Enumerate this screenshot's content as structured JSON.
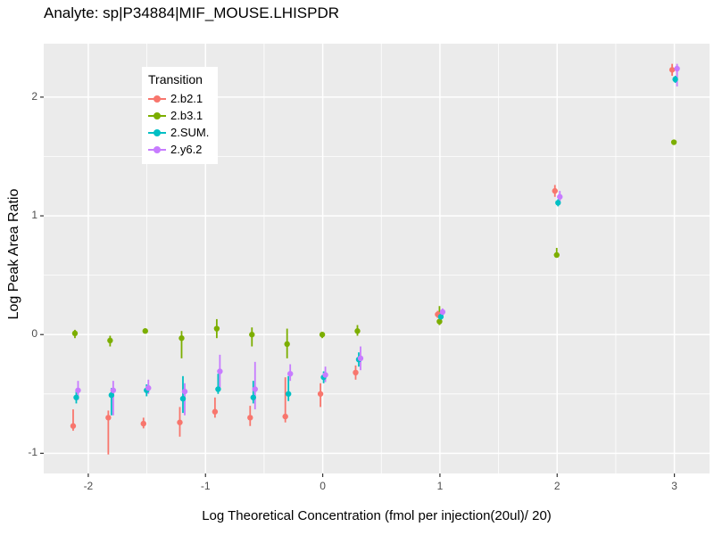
{
  "colors": {
    "background": "#FFFFFF",
    "panel_bg": "#EBEBEB",
    "grid": "#FFFFFF",
    "tick_mark": "#333333",
    "tick_text": "#4D4D4D",
    "text": "#000000"
  },
  "chart_data": {
    "type": "scatter",
    "title": "Analyte: sp|P34884|MIF_MOUSE.LHISPDR",
    "xlabel": "Log Theoretical Concentration (fmol per injection(20ul)/ 20)",
    "ylabel": "Log Peak Area Ratio",
    "legend_title": "Transition",
    "legend_position": "inside-top-left",
    "grid": "on",
    "point_style": "pointrange (dot with vertical error bar, no caps)",
    "xlim": [
      -2.38,
      3.3
    ],
    "ylim": [
      -1.17,
      2.45
    ],
    "x_major_ticks": [
      -2,
      -1,
      0,
      1,
      2,
      3
    ],
    "x_tick_labels": [
      "-2",
      "-1",
      "0",
      "1",
      "2",
      "3"
    ],
    "x_minor_ticks": [
      -1.5,
      -0.5,
      0.5,
      1.5,
      2.5
    ],
    "y_major_ticks": [
      -1,
      0,
      1,
      2
    ],
    "y_tick_labels": [
      "-1",
      "0",
      "1",
      "2"
    ],
    "y_minor_ticks": [
      -0.5,
      0.5,
      1.5
    ],
    "x": [
      -2.11,
      -1.81,
      -1.51,
      -1.2,
      -0.9,
      -0.6,
      -0.3,
      0,
      0.3,
      1,
      2,
      3
    ],
    "series": [
      {
        "name": "2.b2.1",
        "color": "#F8766D",
        "points": [
          {
            "y": -0.77,
            "lo": -0.81,
            "hi": -0.63
          },
          {
            "y": -0.7,
            "lo": -1.01,
            "hi": -0.64
          },
          {
            "y": -0.75,
            "lo": -0.79,
            "hi": -0.7
          },
          {
            "y": -0.74,
            "lo": -0.86,
            "hi": -0.61
          },
          {
            "y": -0.65,
            "lo": -0.7,
            "hi": -0.53
          },
          {
            "y": -0.7,
            "lo": -0.77,
            "hi": -0.6
          },
          {
            "y": -0.69,
            "lo": -0.74,
            "hi": -0.36
          },
          {
            "y": -0.5,
            "lo": -0.61,
            "hi": -0.41
          },
          {
            "y": -0.32,
            "lo": -0.38,
            "hi": -0.26
          },
          {
            "y": 0.17,
            "lo": 0.14,
            "hi": 0.2
          },
          {
            "y": 1.21,
            "lo": 1.16,
            "hi": 1.26
          },
          {
            "y": 2.23,
            "lo": 2.18,
            "hi": 2.28
          }
        ]
      },
      {
        "name": "2.b3.1",
        "color": "#7CAE00",
        "points": [
          {
            "y": 0.01,
            "lo": -0.03,
            "hi": 0.04
          },
          {
            "y": -0.05,
            "lo": -0.1,
            "hi": -0.01
          },
          {
            "y": 0.03,
            "lo": 0.01,
            "hi": 0.05
          },
          {
            "y": -0.03,
            "lo": -0.2,
            "hi": 0.03
          },
          {
            "y": 0.05,
            "lo": -0.03,
            "hi": 0.13
          },
          {
            "y": 0.0,
            "lo": -0.1,
            "hi": 0.06
          },
          {
            "y": -0.08,
            "lo": -0.2,
            "hi": 0.05
          },
          {
            "y": 0.0,
            "lo": -0.03,
            "hi": 0.02
          },
          {
            "y": 0.03,
            "lo": -0.01,
            "hi": 0.08
          },
          {
            "y": 0.11,
            "lo": 0.08,
            "hi": 0.24
          },
          {
            "y": 0.67,
            "lo": 0.65,
            "hi": 0.73
          },
          {
            "y": 1.62,
            "lo": 1.61,
            "hi": 1.64
          }
        ]
      },
      {
        "name": "2.SUM.",
        "color": "#00BFC4",
        "points": [
          {
            "y": -0.53,
            "lo": -0.58,
            "hi": -0.47
          },
          {
            "y": -0.51,
            "lo": -0.68,
            "hi": -0.45
          },
          {
            "y": -0.47,
            "lo": -0.52,
            "hi": -0.42
          },
          {
            "y": -0.54,
            "lo": -0.66,
            "hi": -0.35
          },
          {
            "y": -0.46,
            "lo": -0.5,
            "hi": -0.33
          },
          {
            "y": -0.53,
            "lo": -0.58,
            "hi": -0.39
          },
          {
            "y": -0.5,
            "lo": -0.56,
            "hi": -0.35
          },
          {
            "y": -0.36,
            "lo": -0.41,
            "hi": -0.31
          },
          {
            "y": -0.21,
            "lo": -0.27,
            "hi": -0.15
          },
          {
            "y": 0.15,
            "lo": 0.12,
            "hi": 0.18
          },
          {
            "y": 1.11,
            "lo": 1.08,
            "hi": 1.14
          },
          {
            "y": 2.15,
            "lo": 2.12,
            "hi": 2.18
          }
        ]
      },
      {
        "name": "2.y6.2",
        "color": "#C77CFF",
        "points": [
          {
            "y": -0.47,
            "lo": -0.55,
            "hi": -0.39
          },
          {
            "y": -0.47,
            "lo": -0.68,
            "hi": -0.39
          },
          {
            "y": -0.45,
            "lo": -0.5,
            "hi": -0.38
          },
          {
            "y": -0.48,
            "lo": -0.68,
            "hi": -0.41
          },
          {
            "y": -0.31,
            "lo": -0.45,
            "hi": -0.17
          },
          {
            "y": -0.46,
            "lo": -0.63,
            "hi": -0.23
          },
          {
            "y": -0.33,
            "lo": -0.39,
            "hi": -0.25
          },
          {
            "y": -0.34,
            "lo": -0.4,
            "hi": -0.27
          },
          {
            "y": -0.2,
            "lo": -0.3,
            "hi": -0.1
          },
          {
            "y": 0.19,
            "lo": 0.16,
            "hi": 0.22
          },
          {
            "y": 1.16,
            "lo": 1.11,
            "hi": 1.21
          },
          {
            "y": 2.24,
            "lo": 2.09,
            "hi": 2.28
          }
        ]
      }
    ]
  }
}
